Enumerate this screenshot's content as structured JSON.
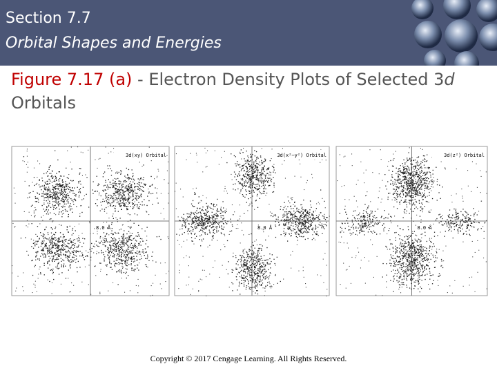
{
  "header": {
    "section": "Section 7.7",
    "subtitle": "Orbital Shapes and Energies"
  },
  "figure": {
    "label": "Figure 7.17 (a)",
    "caption": "- Electron Density Plots of Selected 3",
    "caption_italic": "d",
    "caption_end": "Orbitals"
  },
  "panels": [
    {
      "orbital": "3d(xy) Orbital",
      "scale": "8.0 Å"
    },
    {
      "orbital": "3d(x²−y²) Orbital",
      "scale": "8.0 Å"
    },
    {
      "orbital": "3d(z²) Orbital",
      "scale": "8.0 Å"
    }
  ],
  "footer": {
    "copyright": "Copyright © 2017 Cengage Learning. All Rights Reserved."
  }
}
